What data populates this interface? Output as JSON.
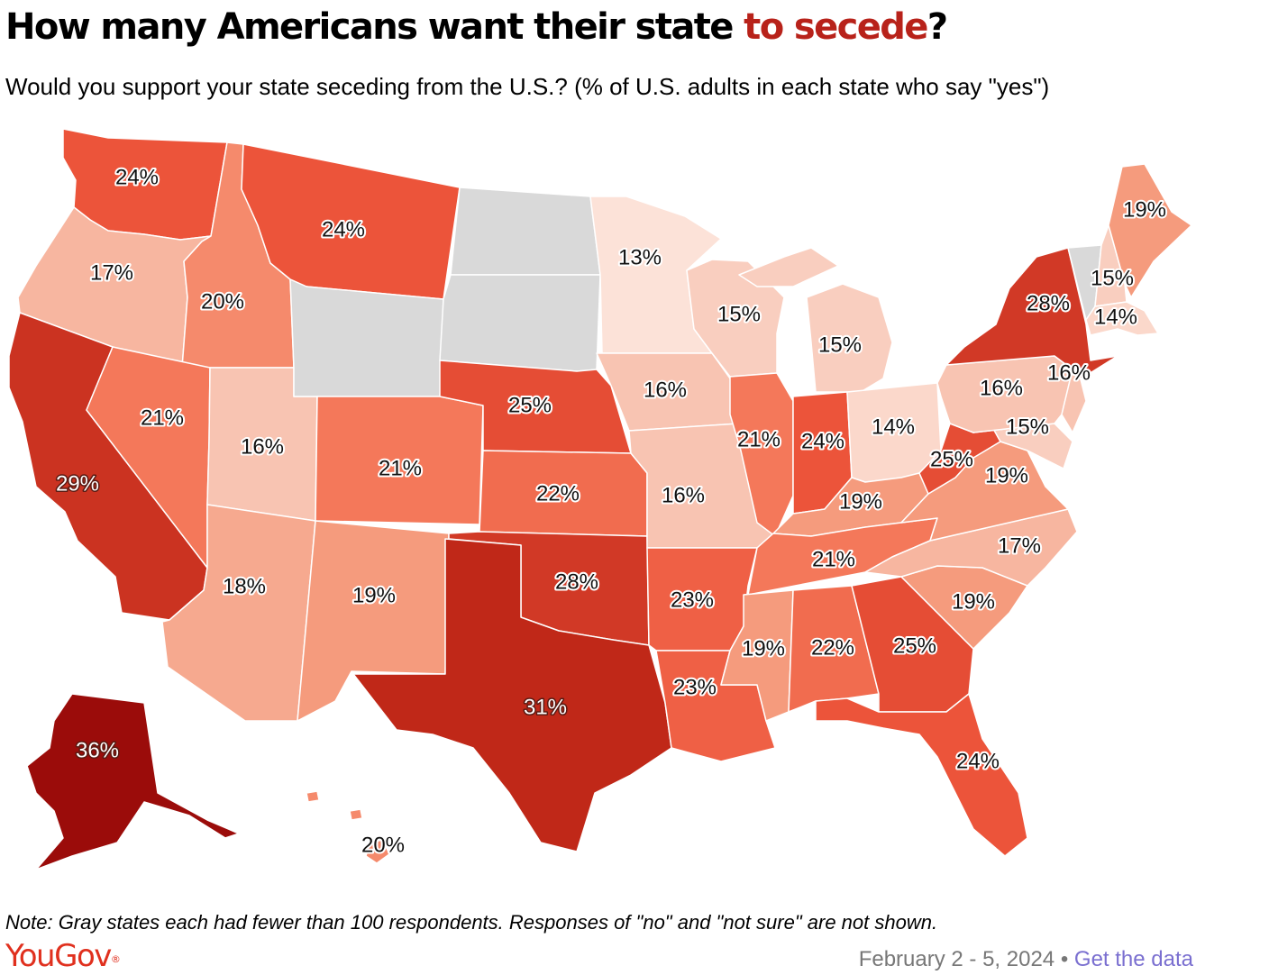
{
  "title": {
    "prefix": "How many Americans want their state ",
    "highlight": "to secede",
    "suffix": "?"
  },
  "subtitle": "Would you support your state seceding from the U.S.? (% of U.S. adults in each state who say \"yes\")",
  "note": "Note: Gray states each had fewer than 100 respondents. Responses of \"no\" and \"not sure\" are not shown.",
  "brand": {
    "name": "YouGov",
    "mark": "®"
  },
  "footer": {
    "date": "February 2 - 5, 2024",
    "separator": "•",
    "link": "Get the data"
  },
  "colors": {
    "no_data": "#d9d9d9",
    "accent": "#b8221a",
    "brand": "#e0301e",
    "link": "#7a6fd0"
  },
  "chart_data": {
    "type": "choropleth",
    "title": "How many Americans want their state to secede?",
    "subtitle": "Would you support your state seceding from the U.S.? (% of U.S. adults in each state who say \"yes\")",
    "unit": "%",
    "value_label": "% who say \"yes\"",
    "no_data_states": [
      "ND",
      "SD",
      "WY",
      "VT"
    ],
    "states": [
      {
        "state": "WA",
        "value": 24
      },
      {
        "state": "OR",
        "value": 17
      },
      {
        "state": "CA",
        "value": 29
      },
      {
        "state": "ID",
        "value": 20
      },
      {
        "state": "NV",
        "value": 21
      },
      {
        "state": "UT",
        "value": 16
      },
      {
        "state": "AZ",
        "value": 18
      },
      {
        "state": "MT",
        "value": 24
      },
      {
        "state": "WY",
        "value": null
      },
      {
        "state": "CO",
        "value": 21
      },
      {
        "state": "NM",
        "value": 19
      },
      {
        "state": "ND",
        "value": null
      },
      {
        "state": "SD",
        "value": null
      },
      {
        "state": "NE",
        "value": 25
      },
      {
        "state": "KS",
        "value": 22
      },
      {
        "state": "OK",
        "value": 28
      },
      {
        "state": "TX",
        "value": 31
      },
      {
        "state": "MN",
        "value": 13
      },
      {
        "state": "IA",
        "value": 16
      },
      {
        "state": "MO",
        "value": 16
      },
      {
        "state": "AR",
        "value": 23
      },
      {
        "state": "LA",
        "value": 23
      },
      {
        "state": "WI",
        "value": 15
      },
      {
        "state": "IL",
        "value": 21
      },
      {
        "state": "MI",
        "value": 15
      },
      {
        "state": "IN",
        "value": 24
      },
      {
        "state": "OH",
        "value": 14
      },
      {
        "state": "KY",
        "value": 19
      },
      {
        "state": "TN",
        "value": 21
      },
      {
        "state": "MS",
        "value": 19
      },
      {
        "state": "AL",
        "value": 22
      },
      {
        "state": "GA",
        "value": 25
      },
      {
        "state": "FL",
        "value": 24
      },
      {
        "state": "SC",
        "value": 19
      },
      {
        "state": "NC",
        "value": 17
      },
      {
        "state": "VA",
        "value": 19
      },
      {
        "state": "WV",
        "value": 25
      },
      {
        "state": "MD",
        "value": 15
      },
      {
        "state": "PA",
        "value": 16
      },
      {
        "state": "NJ",
        "value": 16
      },
      {
        "state": "NY",
        "value": 28
      },
      {
        "state": "VT",
        "value": null
      },
      {
        "state": "NH",
        "value": 15
      },
      {
        "state": "MA",
        "value": 14
      },
      {
        "state": "ME",
        "value": 19
      },
      {
        "state": "AK",
        "value": 36
      },
      {
        "state": "HI",
        "value": 20
      }
    ]
  }
}
